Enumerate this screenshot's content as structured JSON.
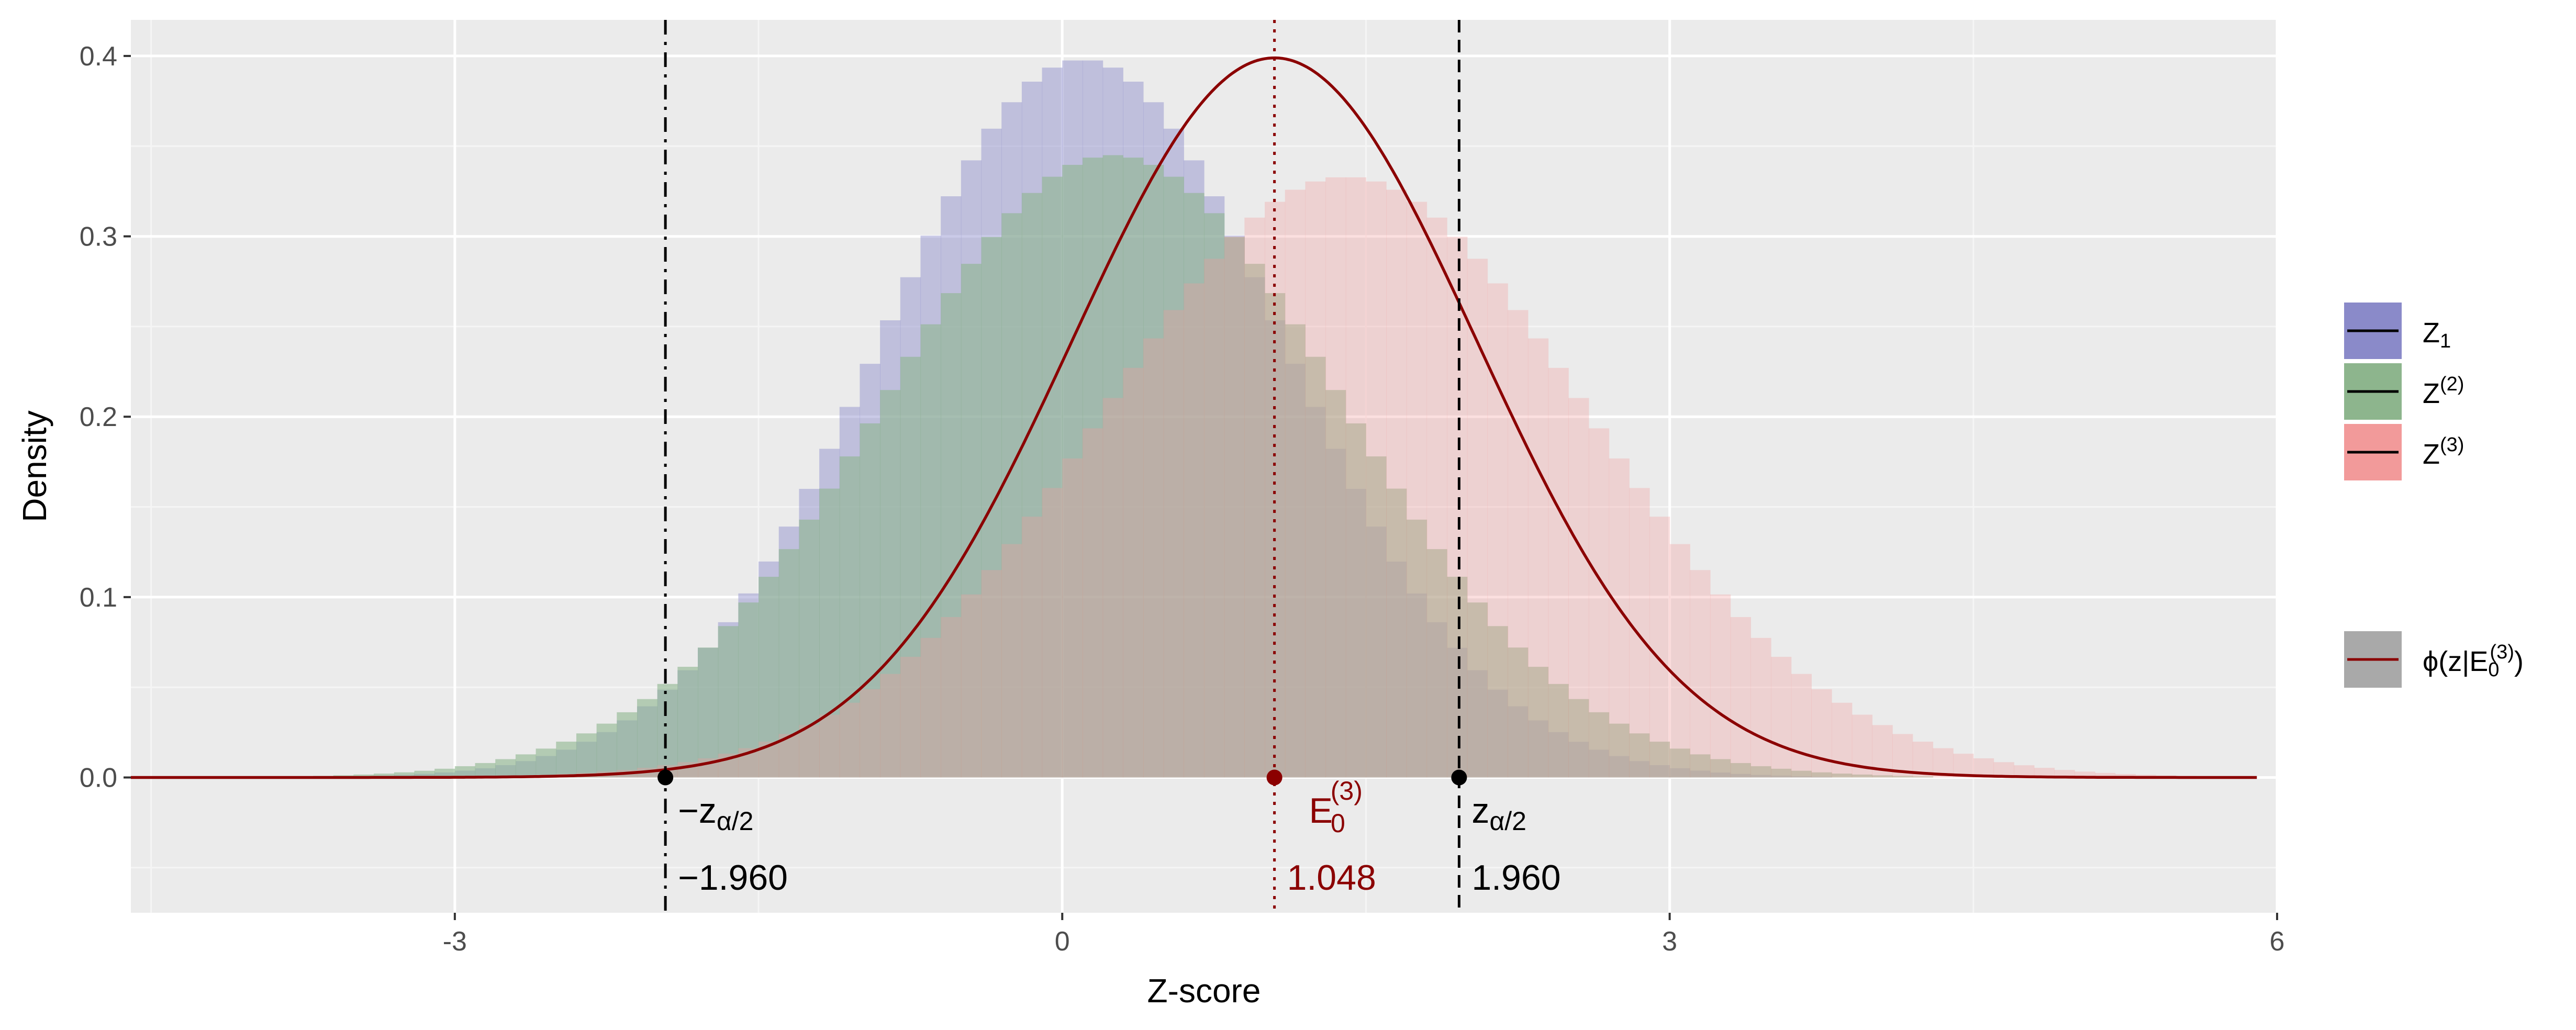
{
  "chart_data": {
    "type": "histogram",
    "xlabel": "Z-score",
    "ylabel": "Density",
    "xlim": [
      -4.6,
      6.0
    ],
    "ylim": [
      -0.075,
      0.42
    ],
    "x_ticks": [
      -3,
      0,
      3,
      6
    ],
    "x_tick_labels": [
      "-3",
      "0",
      "3",
      "6"
    ],
    "y_ticks": [
      0.0,
      0.1,
      0.2,
      0.3,
      0.4
    ],
    "y_tick_labels": [
      "0.0",
      "0.1",
      "0.2",
      "0.3",
      "0.4"
    ],
    "grid": true,
    "bin_width": 0.1,
    "series": [
      {
        "name_main": "Z",
        "name_sub": "1",
        "name_sup": "",
        "kind": "histogram",
        "mean": 0.1,
        "sd": 1.0,
        "peak": 0.398,
        "color": "#8A8AC9",
        "opacity": 0.45
      },
      {
        "name_main": "Z",
        "name_sub": "",
        "name_sup": "(2)",
        "kind": "histogram",
        "mean": 0.25,
        "sd": 1.13,
        "peak": 0.345,
        "color": "#8DB58D",
        "opacity": 0.6
      },
      {
        "name_main": "Z",
        "name_sub": "",
        "name_sup": "(3)",
        "kind": "histogram",
        "mean": 1.4,
        "sd": 1.2,
        "peak": 0.333,
        "color": "#F29A9A",
        "opacity": 0.32
      }
    ],
    "density_curve": {
      "name_main": "ϕ(z|E",
      "name_sub": "0",
      "name_sup": "(3)",
      "name_close": ")",
      "mean": 1.048,
      "sd": 1.0,
      "x_range": [
        -4.6,
        5.9
      ],
      "color": "#8B0000"
    },
    "vlines": [
      {
        "x": -1.96,
        "style": "dash-dot",
        "color": "#000000"
      },
      {
        "x": 1.048,
        "style": "dotted",
        "color": "#8B0000"
      },
      {
        "x": 1.96,
        "style": "dashed",
        "color": "#000000"
      }
    ],
    "points": [
      {
        "x": -1.96,
        "y": 0.0,
        "color": "#000000"
      },
      {
        "x": 1.048,
        "y": 0.0,
        "color": "#8B0000"
      },
      {
        "x": 1.96,
        "y": 0.0,
        "color": "#000000"
      }
    ],
    "annotations": [
      {
        "x": -1.96,
        "label_main": "−z",
        "label_sub": "α/2",
        "label_sup": "",
        "value": "−1.960",
        "color": "#000000"
      },
      {
        "x": 1.048,
        "label_main": "E",
        "label_sub": "0",
        "label_sup": "(3)",
        "value": "1.048",
        "color": "#8B0000"
      },
      {
        "x": 1.96,
        "label_main": "z",
        "label_sub": "α/2",
        "label_sup": "",
        "value": "1.960",
        "color": "#000000"
      }
    ]
  },
  "colors": {
    "panel_bg": "#EBEBEB",
    "grid_major": "#FFFFFF",
    "grid_minor": "#F5F5F5",
    "legend_line": "#000000",
    "density_legend_fill": "#A9A9A9"
  }
}
